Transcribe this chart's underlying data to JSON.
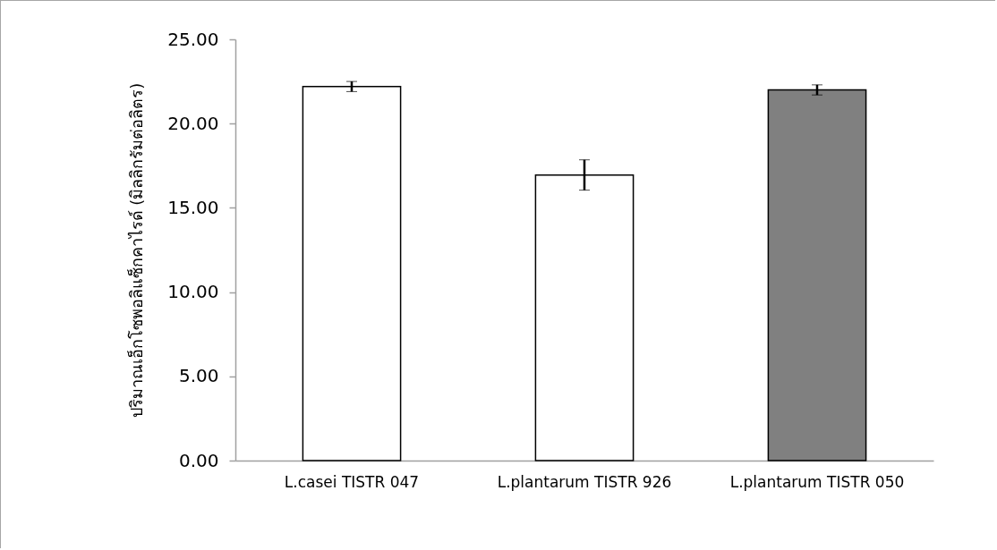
{
  "chart_data": {
    "type": "bar",
    "ylabel": "ปริมาณเอ็กโซพอลิแซ็กคาไรด์ (มิลลิกรัมต่อลิตร)",
    "categories": [
      "L.casei TISTR 047",
      "L.plantarum TISTR 926",
      "L.plantarum TISTR 050"
    ],
    "values": [
      22.2,
      16.95,
      22.0
    ],
    "errors": [
      0.3,
      0.9,
      0.3
    ],
    "colors": [
      "#ffffff",
      "#ffffff",
      "#808080"
    ],
    "ylim": [
      0,
      25
    ],
    "yticks": [
      {
        "value": 0,
        "label": "0.00"
      },
      {
        "value": 5,
        "label": "5.00"
      },
      {
        "value": 10,
        "label": "10.00"
      },
      {
        "value": 15,
        "label": "15.00"
      },
      {
        "value": 20,
        "label": "20.00"
      },
      {
        "value": 25,
        "label": "25.00"
      }
    ],
    "grid": false,
    "legend": false
  }
}
